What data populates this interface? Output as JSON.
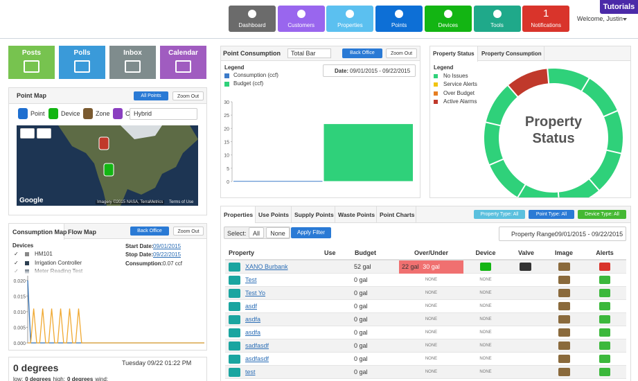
{
  "nav": {
    "buttons": [
      {
        "label": "Dashboard",
        "color": "#6b6b6b"
      },
      {
        "label": "Customers",
        "color": "#9966ee"
      },
      {
        "label": "Properties",
        "color": "#5bc0f0"
      },
      {
        "label": "Points",
        "color": "#0d6fd6"
      },
      {
        "label": "Devices",
        "color": "#13b513"
      },
      {
        "label": "Tools",
        "color": "#1fa98a"
      },
      {
        "label": "Notifications",
        "color": "#d9342b",
        "badge": 1
      }
    ],
    "welcome": "Welcome, Justin",
    "tutorials": "Tutorials"
  },
  "tiles": [
    {
      "label": "Posts",
      "color": "#77c34f"
    },
    {
      "label": "Polls",
      "color": "#3a9ad9"
    },
    {
      "label": "Inbox",
      "color": "#7f8c8d"
    },
    {
      "label": "Calendar",
      "color": "#a05cc0"
    }
  ],
  "point_map": {
    "title": "Point Map",
    "all_points": "All Points",
    "zoom_out": "Zoom Out",
    "legend": [
      "Point",
      "Device",
      "Zone",
      "C"
    ],
    "map_type": "Hybrid",
    "attribution": "Imagery ©2015 NASA, TerraMetrics",
    "terms": "Terms of Use",
    "google": "Google"
  },
  "consumption_map": {
    "tabs": [
      "Consumption Map",
      "Flow Map"
    ],
    "back_office": "Back Office",
    "zoom_out": "Zoom Out",
    "devices_label": "Devices",
    "devices": [
      {
        "name": "HM101",
        "color": "#888888"
      },
      {
        "name": "Irrigation Controller",
        "color": "#2c3e50"
      },
      {
        "name": "Meter Reading Test",
        "color": "#2c3e50"
      }
    ],
    "start_label": "Start Date:",
    "start": "09/01/2015",
    "stop_label": "Stop Date:",
    "stop": "09/22/2015",
    "consumption_label": "Consumption:",
    "consumption": "0.07 ccf"
  },
  "weather": {
    "temp": "0 degrees",
    "datetime": "Tuesday 09/22 01:22 PM",
    "low_label": "low:",
    "low": "0 degrees",
    "high_label": "high:",
    "high": "0 degrees",
    "wind_label": "wind:"
  },
  "point_consumption": {
    "chart_type": "Total Bar",
    "back_office": "Back Office",
    "zoom_out": "Zoom Out",
    "date_label": "Date:",
    "date": "09/01/2015 - 09/22/2015"
  },
  "properties": {
    "tabs": [
      "Properties",
      "Use Points",
      "Supply Points",
      "Waste Points",
      "Point Charts"
    ],
    "filters": [
      {
        "label": "Property Type: All",
        "color": "#5bc0de"
      },
      {
        "label": "Point Type: All",
        "color": "#2a7ad5"
      },
      {
        "label": "Device Type: All",
        "color": "#45b833"
      }
    ],
    "select_label": "Select:",
    "select_all": "All",
    "select_none": "None",
    "apply": "Apply Filter",
    "range_label": "Property Range:",
    "range": "09/01/2015 - 09/22/2015",
    "columns": [
      "Property",
      "Use",
      "Budget",
      "Over/Under",
      "Device",
      "Valve",
      "Image",
      "Alerts"
    ],
    "rows": [
      {
        "cells": [
          "XANO Burbank",
          "52 gal",
          "22 gal",
          "30 gal"
        ],
        "device": true,
        "valve": true,
        "alarm": true
      },
      {
        "cells": [
          "Test",
          "0 gal",
          "NONE",
          "NONE"
        ]
      },
      {
        "cells": [
          "Test Yo",
          "0 gal",
          "NONE",
          "NONE"
        ]
      },
      {
        "cells": [
          "asdf",
          "0 gal",
          "NONE",
          "NONE"
        ]
      },
      {
        "cells": [
          "asdfa",
          "0 gal",
          "NONE",
          "NONE"
        ]
      },
      {
        "cells": [
          "asdfa",
          "0 gal",
          "NONE",
          "NONE"
        ]
      },
      {
        "cells": [
          "sadfasdf",
          "0 gal",
          "NONE",
          "NONE"
        ]
      },
      {
        "cells": [
          "asdfasdf",
          "0 gal",
          "NONE",
          "NONE"
        ]
      },
      {
        "cells": [
          "test",
          "0 gal",
          "NONE",
          "NONE"
        ]
      }
    ]
  },
  "chart_data": [
    {
      "type": "bar",
      "title": "Point Consumption",
      "legend_title": "Legend",
      "series": [
        {
          "name": "Consumption (ccf)",
          "color": "#3c7bc9",
          "values": [
            0.07
          ]
        },
        {
          "name": "Budget (ccf)",
          "color": "#2fd17a",
          "values": [
            21.5
          ]
        }
      ],
      "ylim": [
        0,
        30
      ],
      "yticks": [
        0,
        5,
        10,
        15,
        20,
        25,
        30
      ]
    },
    {
      "type": "pie",
      "tabs": [
        "Property Status",
        "Property Consumption"
      ],
      "legend_title": "Legend",
      "categories": [
        "No Issues",
        "Service Alerts",
        "Over Budget",
        "Active Alarms"
      ],
      "values": [
        9,
        0,
        0,
        1
      ],
      "colors": [
        "#2fd17a",
        "#f1c40f",
        "#e67e22",
        "#c0392b"
      ],
      "center_label": [
        "Property",
        "Status"
      ]
    },
    {
      "type": "line",
      "series": [
        {
          "color": "#2f6fb5",
          "values": [
            0.02,
            0,
            0,
            0,
            0,
            0,
            0,
            0,
            0,
            0,
            0,
            0,
            0,
            0,
            0,
            0,
            0,
            0,
            0,
            0,
            0,
            0,
            0,
            0,
            0,
            0,
            0,
            0,
            0,
            0,
            0,
            0,
            0,
            0,
            0,
            0,
            0,
            0,
            0,
            0,
            0,
            0,
            0,
            0,
            0,
            0,
            0,
            0,
            0,
            0,
            0,
            0,
            0,
            0,
            0,
            0,
            0,
            0,
            0,
            0
          ]
        },
        {
          "color": "#f0a830",
          "values": [
            0,
            0,
            0.011,
            0,
            0,
            0.011,
            0,
            0,
            0.011,
            0,
            0,
            0.011,
            0,
            0,
            0.011,
            0,
            0,
            0.011,
            0,
            0,
            0,
            0,
            0,
            0,
            0,
            0,
            0,
            0,
            0,
            0,
            0,
            0,
            0,
            0,
            0,
            0,
            0,
            0,
            0,
            0,
            0,
            0,
            0,
            0,
            0,
            0,
            0,
            0,
            0,
            0,
            0,
            0,
            0,
            0,
            0,
            0,
            0,
            0,
            0,
            0
          ]
        }
      ],
      "ylim": [
        0,
        0.0215
      ],
      "yticks": [
        {
          "value": 0,
          "label": "0.000"
        },
        {
          "value": 0.005,
          "label": "0.005"
        },
        {
          "value": 0.01,
          "label": "0.010"
        },
        {
          "value": 0.015,
          "label": "0.015"
        },
        {
          "value": 0.02,
          "label": "0.020"
        }
      ]
    }
  ]
}
